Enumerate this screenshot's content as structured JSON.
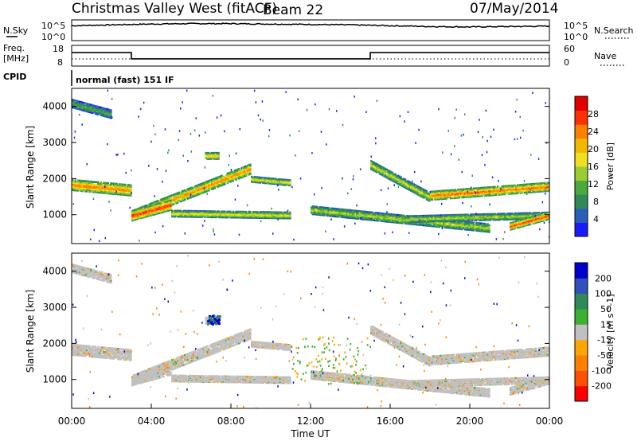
{
  "header": {
    "title": "Christmas Valley West (fitACF)",
    "beam": "Beam 22",
    "date": "07/May/2014"
  },
  "top_panels": {
    "nsky_label": "N.Sky",
    "nsky_ticks": [
      "10^5",
      "10^0"
    ],
    "nsearch_label": "N.Search",
    "nsearch_ticks": [
      "10^5",
      "10^0"
    ],
    "freq_label": "Freq.",
    "freq_unit": "[MHz]",
    "freq_ticks": [
      "18",
      "8"
    ],
    "nave_label": "Nave",
    "nave_ticks": [
      "60",
      "0"
    ],
    "cpid_label": "CPID",
    "cpid_text": "normal (fast) 151 IF"
  },
  "chart_data": [
    {
      "type": "line",
      "name": "noise",
      "x": [
        0,
        1,
        2,
        3,
        4,
        6,
        8,
        10,
        12,
        14,
        16,
        18,
        20,
        22,
        24
      ],
      "series": [
        {
          "label": "N.Sky",
          "values": [
            3.6,
            3.7,
            3.8,
            3.9,
            4.0,
            4.1,
            4.1,
            4.0,
            3.9,
            3.8,
            3.6,
            3.4,
            3.3,
            3.4,
            3.5
          ]
        }
      ]
    },
    {
      "type": "line",
      "name": "frequency",
      "x": [
        0,
        3,
        3,
        15,
        15,
        24
      ],
      "series": [
        {
          "label": "Freq.",
          "values": [
            14.5,
            14.5,
            11.5,
            11.5,
            14.5,
            14.5
          ]
        }
      ]
    },
    {
      "type": "heatmap",
      "name": "power",
      "xlabel": "",
      "ylabel": "Slant Range [km]",
      "xlim": [
        0,
        24
      ],
      "ylim": [
        200,
        4500
      ],
      "yticks": [
        1000,
        2000,
        3000,
        4000
      ],
      "colorbar": {
        "label": "Power [dB]",
        "ticks": [
          4,
          8,
          12,
          16,
          20,
          24,
          28
        ]
      },
      "bands": [
        {
          "x": [
            0,
            3
          ],
          "y": [
            1850,
            1700
          ],
          "w": 320,
          "level": 0.8
        },
        {
          "x": [
            3,
            9
          ],
          "y": [
            1000,
            2300
          ],
          "w": 300,
          "level": 0.75
        },
        {
          "x": [
            3,
            5
          ],
          "y": [
            1000,
            1300
          ],
          "w": 300,
          "level": 0.92
        },
        {
          "x": [
            5,
            11
          ],
          "y": [
            1050,
            1000
          ],
          "w": 200,
          "level": 0.6
        },
        {
          "x": [
            6.7,
            7.4
          ],
          "y": [
            2650,
            2650
          ],
          "w": 200,
          "level": 0.65
        },
        {
          "x": [
            9,
            11
          ],
          "y": [
            2000,
            1900
          ],
          "w": 180,
          "level": 0.6
        },
        {
          "x": [
            15,
            18
          ],
          "y": [
            2400,
            1500
          ],
          "w": 260,
          "level": 0.55
        },
        {
          "x": [
            18,
            24
          ],
          "y": [
            1550,
            1800
          ],
          "w": 260,
          "level": 0.82
        },
        {
          "x": [
            12,
            21
          ],
          "y": [
            1150,
            650
          ],
          "w": 250,
          "level": 0.5
        },
        {
          "x": [
            17,
            24
          ],
          "y": [
            900,
            1000
          ],
          "w": 200,
          "level": 0.5
        },
        {
          "x": [
            22,
            24
          ],
          "y": [
            700,
            1000
          ],
          "w": 220,
          "level": 0.88
        },
        {
          "x": [
            0,
            2
          ],
          "y": [
            4100,
            3800
          ],
          "w": 250,
          "level": 0.35
        }
      ]
    },
    {
      "type": "heatmap",
      "name": "velocity",
      "xlabel": "Time UT",
      "ylabel": "Slant Range [km]",
      "xlim": [
        0,
        24
      ],
      "ylim": [
        200,
        4500
      ],
      "yticks": [
        1000,
        2000,
        3000,
        4000
      ],
      "xticks": [
        "00:00",
        "04:00",
        "08:00",
        "12:00",
        "16:00",
        "20:00",
        "00:00"
      ],
      "colorbar": {
        "label": "Velocity [m s^-1]",
        "ticks": [
          200,
          100,
          50,
          15,
          -15,
          -50,
          -100,
          -200
        ]
      }
    }
  ],
  "colors": {
    "power": [
      "#1a1aff",
      "#2a5fb8",
      "#2e8b57",
      "#4aaa3a",
      "#9acd32",
      "#f0e020",
      "#f5b800",
      "#ff8000",
      "#ff3000",
      "#e00000"
    ],
    "velocity_pos": [
      "#0000cd",
      "#3050c0",
      "#2e8b57",
      "#3cb030"
    ],
    "velocity_zero": "#c0c0c0",
    "velocity_neg": [
      "#ffa500",
      "#ff8000",
      "#ff5000",
      "#ff0000"
    ]
  }
}
